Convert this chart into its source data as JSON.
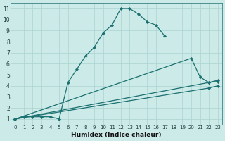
{
  "xlabel": "Humidex (Indice chaleur)",
  "background_color": "#cceae8",
  "grid_color": "#aad4d2",
  "line_color": "#1a7070",
  "xlim": [
    -0.5,
    23.5
  ],
  "ylim": [
    0.5,
    11.5
  ],
  "xticks": [
    0,
    1,
    2,
    3,
    4,
    5,
    6,
    7,
    8,
    9,
    10,
    11,
    12,
    13,
    14,
    15,
    16,
    17,
    18,
    19,
    20,
    21,
    22,
    23
  ],
  "yticks": [
    1,
    2,
    3,
    4,
    5,
    6,
    7,
    8,
    9,
    10,
    11
  ],
  "series": [
    {
      "x": [
        0,
        1,
        2,
        3,
        4,
        5,
        6,
        7,
        8,
        9,
        10,
        11,
        12,
        13,
        14,
        15,
        16,
        17
      ],
      "y": [
        1,
        1.2,
        1.2,
        1.2,
        1.2,
        1.0,
        4.3,
        5.5,
        6.7,
        7.5,
        8.8,
        9.5,
        11.0,
        11.0,
        10.5,
        9.8,
        9.5,
        8.5
      ]
    },
    {
      "x": [
        0,
        20,
        21,
        22,
        23
      ],
      "y": [
        1,
        6.5,
        4.8,
        4.3,
        4.4
      ]
    },
    {
      "x": [
        0,
        22,
        23
      ],
      "y": [
        1,
        4.3,
        4.5
      ]
    },
    {
      "x": [
        0,
        22,
        23
      ],
      "y": [
        1,
        3.8,
        4.0
      ]
    }
  ]
}
